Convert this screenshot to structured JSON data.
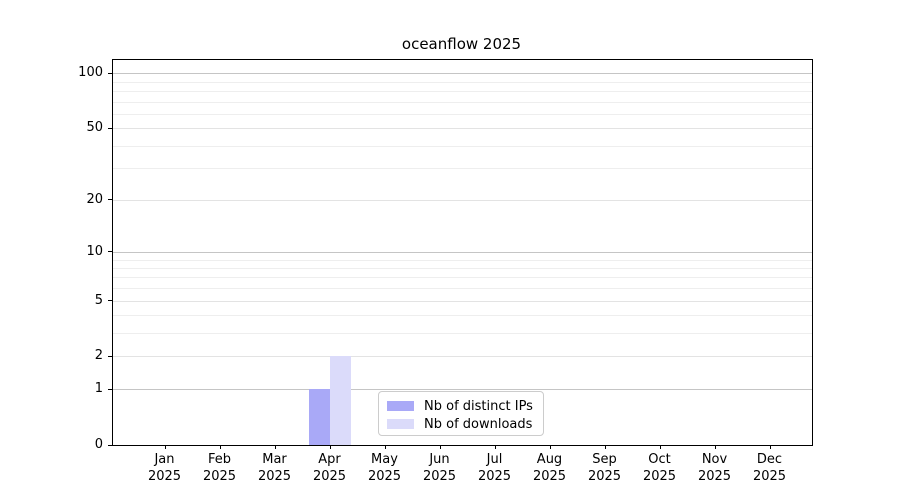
{
  "title": "oceanflow 2025",
  "chart_data": {
    "type": "bar",
    "title": "oceanflow 2025",
    "categories": [
      {
        "month": "Jan",
        "year": "2025"
      },
      {
        "month": "Feb",
        "year": "2025"
      },
      {
        "month": "Mar",
        "year": "2025"
      },
      {
        "month": "Apr",
        "year": "2025"
      },
      {
        "month": "May",
        "year": "2025"
      },
      {
        "month": "Jun",
        "year": "2025"
      },
      {
        "month": "Jul",
        "year": "2025"
      },
      {
        "month": "Aug",
        "year": "2025"
      },
      {
        "month": "Sep",
        "year": "2025"
      },
      {
        "month": "Oct",
        "year": "2025"
      },
      {
        "month": "Nov",
        "year": "2025"
      },
      {
        "month": "Dec",
        "year": "2025"
      }
    ],
    "series": [
      {
        "name": "Nb of distinct IPs",
        "color": "#a9a9f7",
        "values": [
          0,
          0,
          0,
          1,
          0,
          0,
          0,
          0,
          0,
          0,
          0,
          0
        ]
      },
      {
        "name": "Nb of downloads",
        "color": "#dbdbfa",
        "values": [
          0,
          0,
          0,
          2,
          0,
          0,
          0,
          0,
          0,
          0,
          0,
          0
        ]
      }
    ],
    "yscale": "log1p",
    "ylim": [
      0,
      118
    ],
    "yticks": [
      0,
      1,
      2,
      5,
      10,
      20,
      50,
      100
    ],
    "yticks_minor": [
      3,
      4,
      6,
      7,
      8,
      9,
      30,
      40,
      60,
      70,
      80,
      90
    ],
    "grid": {
      "major_color": "#c5c5c5",
      "labeled_minor_color": "#e3e3e3",
      "minor_color": "#eeeeee"
    },
    "legend": {
      "position": "lower center"
    }
  }
}
